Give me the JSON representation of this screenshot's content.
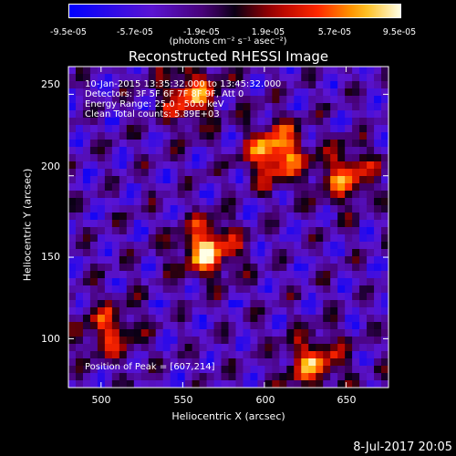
{
  "colorbar": {
    "ticks": [
      "-9.5e-05",
      "-5.7e-05",
      "-1.9e-05",
      "1.9e-05",
      "5.7e-05",
      "9.5e-05"
    ],
    "unit": "(photons cm⁻² s⁻¹ asec⁻²)"
  },
  "chart_data": {
    "type": "heatmap",
    "title": "Reconstructed RHESSI Image",
    "xlabel": "Heliocentric X (arcsec)",
    "ylabel": "Heliocentric Y (arcsec)",
    "xlim": [
      480,
      676
    ],
    "ylim": [
      70,
      267
    ],
    "xticks": [
      500,
      550,
      600,
      650
    ],
    "yticks": [
      100,
      150,
      200,
      250
    ],
    "value_range": [
      -9.5e-05,
      9.5e-05
    ],
    "colormap": "rainbow-blue-black-hot",
    "annotations": [
      "10-Jan-2015 13:35:32.000 to 13:45:32.000",
      "Detectors: 3F 5F 6F 7F 8F 9F, Att 0",
      "Energy Range: 25.0 - 50.0 keV",
      "Clean    Total counts: 5.89E+03"
    ],
    "peak_label": "Position of Peak = [607,214]",
    "peak_position": [
      607,
      214
    ],
    "sources": [
      {
        "x": 607,
        "y": 214,
        "level": 1.0
      },
      {
        "x": 565,
        "y": 155,
        "level": 0.95
      },
      {
        "x": 555,
        "y": 250,
        "level": 0.8
      },
      {
        "x": 650,
        "y": 200,
        "level": 0.7
      },
      {
        "x": 630,
        "y": 85,
        "level": 0.75
      },
      {
        "x": 505,
        "y": 105,
        "level": 0.6
      }
    ]
  },
  "footer": {
    "date": "8-Jul-2017 20:05"
  }
}
